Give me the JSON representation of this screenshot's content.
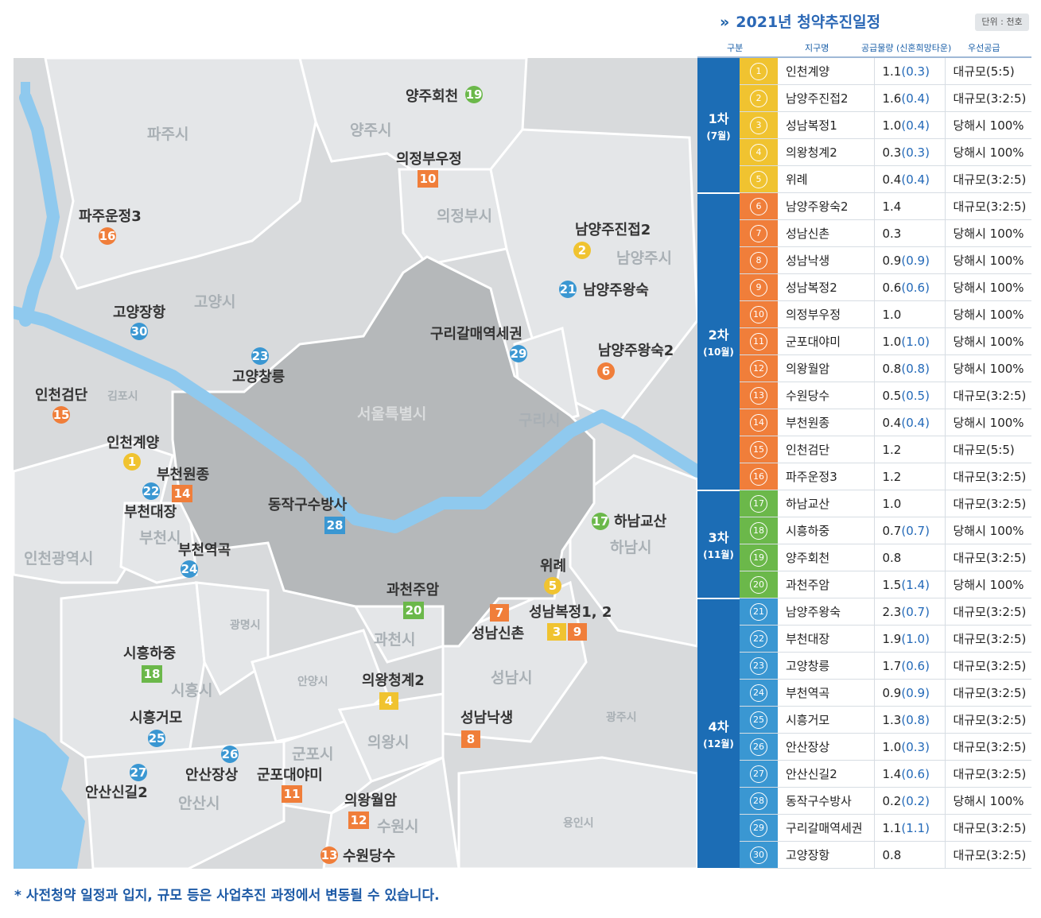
{
  "title": "2021년 청약추진일정",
  "unit": "단위 : 천호",
  "headers": [
    "구분",
    "지구명",
    "공급물량 (신혼희망타운)",
    "우선공급"
  ],
  "note": "* 사전청약 일정과 입지, 규모 등은 사업추진 과정에서 변동될 수 있습니다.",
  "colors": {
    "phase1": "#f0c330",
    "phase2": "#f07e3a",
    "phase3": "#6bb84a",
    "phase4": "#3a97d2",
    "phase_bg": "#1c6db5",
    "seoul": "#b5b8ba",
    "land": "#d8dadc",
    "river": "#8fc9ee"
  },
  "phases": [
    {
      "label": "1차",
      "sub": "(7월)",
      "color": "#f0c330",
      "rows": [
        {
          "num": "1",
          "name": "인천계양",
          "qty": "1.1",
          "hq": "(0.3)",
          "priority": "대규모(5:5)"
        },
        {
          "num": "2",
          "name": "남양주진접2",
          "qty": "1.6",
          "hq": "(0.4)",
          "priority": "대규모(3:2:5)"
        },
        {
          "num": "3",
          "name": "성남복정1",
          "qty": "1.0",
          "hq": "(0.4)",
          "priority": "당해시 100%"
        },
        {
          "num": "4",
          "name": "의왕청계2",
          "qty": "0.3",
          "hq": "(0.3)",
          "priority": "당해시 100%"
        },
        {
          "num": "5",
          "name": "위례",
          "qty": "0.4",
          "hq": "(0.4)",
          "priority": "대규모(3:2:5)"
        }
      ]
    },
    {
      "label": "2차",
      "sub": "(10월)",
      "color": "#f07e3a",
      "rows": [
        {
          "num": "6",
          "name": "남양주왕숙2",
          "qty": "1.4",
          "hq": "",
          "priority": "대규모(3:2:5)"
        },
        {
          "num": "7",
          "name": "성남신촌",
          "qty": "0.3",
          "hq": "",
          "priority": "당해시 100%"
        },
        {
          "num": "8",
          "name": "성남낙생",
          "qty": "0.9",
          "hq": "(0.9)",
          "priority": "당해시 100%"
        },
        {
          "num": "9",
          "name": "성남복정2",
          "qty": "0.6",
          "hq": "(0.6)",
          "priority": "당해시 100%"
        },
        {
          "num": "10",
          "name": "의정부우정",
          "qty": "1.0",
          "hq": "",
          "priority": "당해시 100%"
        },
        {
          "num": "11",
          "name": "군포대야미",
          "qty": "1.0",
          "hq": "(1.0)",
          "priority": "당해시 100%"
        },
        {
          "num": "12",
          "name": "의왕월암",
          "qty": "0.8",
          "hq": "(0.8)",
          "priority": "당해시 100%"
        },
        {
          "num": "13",
          "name": "수원당수",
          "qty": "0.5",
          "hq": "(0.5)",
          "priority": "대규모(3:2:5)"
        },
        {
          "num": "14",
          "name": "부천원종",
          "qty": "0.4",
          "hq": "(0.4)",
          "priority": "당해시 100%"
        },
        {
          "num": "15",
          "name": "인천검단",
          "qty": "1.2",
          "hq": "",
          "priority": "대규모(5:5)"
        },
        {
          "num": "16",
          "name": "파주운정3",
          "qty": "1.2",
          "hq": "",
          "priority": "대규모(3:2:5)"
        }
      ]
    },
    {
      "label": "3차",
      "sub": "(11월)",
      "color": "#6bb84a",
      "rows": [
        {
          "num": "17",
          "name": "하남교산",
          "qty": "1.0",
          "hq": "",
          "priority": "대규모(3:2:5)"
        },
        {
          "num": "18",
          "name": "시흥하중",
          "qty": "0.7",
          "hq": "(0.7)",
          "priority": "당해시 100%"
        },
        {
          "num": "19",
          "name": "양주회천",
          "qty": "0.8",
          "hq": "",
          "priority": "대규모(3:2:5)"
        },
        {
          "num": "20",
          "name": "과천주암",
          "qty": "1.5",
          "hq": "(1.4)",
          "priority": "당해시 100%"
        }
      ]
    },
    {
      "label": "4차",
      "sub": "(12월)",
      "color": "#3a97d2",
      "rows": [
        {
          "num": "21",
          "name": "남양주왕숙",
          "qty": "2.3",
          "hq": "(0.7)",
          "priority": "대규모(3:2:5)"
        },
        {
          "num": "22",
          "name": "부천대장",
          "qty": "1.9",
          "hq": "(1.0)",
          "priority": "대규모(3:2:5)"
        },
        {
          "num": "23",
          "name": "고양창릉",
          "qty": "1.7",
          "hq": "(0.6)",
          "priority": "대규모(3:2:5)"
        },
        {
          "num": "24",
          "name": "부천역곡",
          "qty": "0.9",
          "hq": "(0.9)",
          "priority": "대규모(3:2:5)"
        },
        {
          "num": "25",
          "name": "시흥거모",
          "qty": "1.3",
          "hq": "(0.8)",
          "priority": "대규모(3:2:5)"
        },
        {
          "num": "26",
          "name": "안산장상",
          "qty": "1.0",
          "hq": "(0.3)",
          "priority": "대규모(3:2:5)"
        },
        {
          "num": "27",
          "name": "안산신길2",
          "qty": "1.4",
          "hq": "(0.6)",
          "priority": "대규모(3:2:5)"
        },
        {
          "num": "28",
          "name": "동작구수방사",
          "qty": "0.2",
          "hq": "(0.2)",
          "priority": "당해시 100%"
        },
        {
          "num": "29",
          "name": "구리갈매역세권",
          "qty": "1.1",
          "hq": "(1.1)",
          "priority": "대규모(3:2:5)"
        },
        {
          "num": "30",
          "name": "고양장항",
          "qty": "0.8",
          "hq": "",
          "priority": "대규모(3:2:5)"
        }
      ]
    }
  ],
  "map": {
    "regions": [
      "파주시",
      "양주시",
      "의정부시",
      "남양주시",
      "고양시",
      "김포시",
      "서울특별시",
      "구리시",
      "하남시",
      "인천광역시",
      "부천시",
      "광명시",
      "과천시",
      "시흥시",
      "안양시",
      "성남시",
      "광주시",
      "군포시",
      "의왕시",
      "안산시",
      "수원시",
      "용인시"
    ],
    "site_labels": [
      "양주회천",
      "의정부우정",
      "파주운정3",
      "남양주진접2",
      "남양주왕숙",
      "고양장항",
      "구리갈매역세권",
      "남양주왕숙2",
      "고양창릉",
      "인천검단",
      "인천계양",
      "부천원종",
      "부천대장",
      "동작구수방사",
      "하남교산",
      "부천역곡",
      "위례",
      "과천주암",
      "성남복정1, 2",
      "성남신촌",
      "시흥하중",
      "의왕청계2",
      "시흥거모",
      "성남낙생",
      "안산장상",
      "군포대야미",
      "안산신길2",
      "의왕월암",
      "수원당수"
    ],
    "markers": [
      "1",
      "2",
      "3",
      "4",
      "5",
      "6",
      "7",
      "8",
      "9",
      "10",
      "11",
      "12",
      "13",
      "14",
      "15",
      "16",
      "17",
      "18",
      "19",
      "20",
      "21",
      "22",
      "23",
      "24",
      "25",
      "26",
      "27",
      "28",
      "29",
      "30"
    ]
  }
}
